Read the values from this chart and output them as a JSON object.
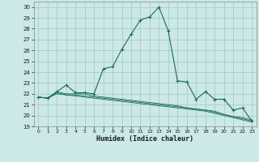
{
  "xlabel": "Humidex (Indice chaleur)",
  "bg_color": "#cce8e8",
  "grid_color": "#a0c8c8",
  "line_color": "#1a6b5a",
  "xlim": [
    -0.5,
    23.5
  ],
  "ylim": [
    19,
    30.5
  ],
  "yticks": [
    19,
    20,
    21,
    22,
    23,
    24,
    25,
    26,
    27,
    28,
    29,
    30
  ],
  "xticks": [
    0,
    1,
    2,
    3,
    4,
    5,
    6,
    7,
    8,
    9,
    10,
    11,
    12,
    13,
    14,
    15,
    16,
    17,
    18,
    19,
    20,
    21,
    22,
    23
  ],
  "series": [
    {
      "x": [
        0,
        1,
        2,
        3,
        4,
        5,
        6,
        7,
        8,
        9,
        10,
        11,
        12,
        13,
        14,
        15,
        16,
        17,
        18,
        19,
        20,
        21,
        22,
        23
      ],
      "y": [
        21.7,
        21.6,
        22.2,
        22.8,
        22.1,
        22.1,
        22.0,
        24.3,
        24.5,
        26.1,
        27.5,
        28.8,
        29.1,
        30.0,
        27.8,
        23.2,
        23.1,
        21.5,
        22.2,
        21.5,
        21.5,
        20.5,
        20.7,
        19.5
      ],
      "marker": true
    },
    {
      "x": [
        0,
        1,
        2,
        3,
        4,
        5,
        6,
        7,
        8,
        9,
        10,
        11,
        12,
        13,
        14,
        15,
        16,
        17,
        18,
        19,
        20,
        21,
        22,
        23
      ],
      "y": [
        21.7,
        21.6,
        22.2,
        22.0,
        22.0,
        22.0,
        21.8,
        21.7,
        21.6,
        21.5,
        21.4,
        21.3,
        21.2,
        21.1,
        21.0,
        20.9,
        20.7,
        20.6,
        20.5,
        20.4,
        20.1,
        19.9,
        19.8,
        19.6
      ],
      "marker": false
    },
    {
      "x": [
        0,
        1,
        2,
        3,
        4,
        5,
        6,
        7,
        8,
        9,
        10,
        11,
        12,
        13,
        14,
        15,
        16,
        17,
        18,
        19,
        20,
        21,
        22,
        23
      ],
      "y": [
        21.7,
        21.6,
        22.1,
        21.9,
        21.9,
        21.8,
        21.7,
        21.6,
        21.5,
        21.4,
        21.3,
        21.2,
        21.1,
        21.0,
        20.9,
        20.8,
        20.7,
        20.6,
        20.5,
        20.3,
        20.1,
        19.9,
        19.7,
        19.5
      ],
      "marker": false
    },
    {
      "x": [
        0,
        1,
        2,
        3,
        4,
        5,
        6,
        7,
        8,
        9,
        10,
        11,
        12,
        13,
        14,
        15,
        16,
        17,
        18,
        19,
        20,
        21,
        22,
        23
      ],
      "y": [
        21.7,
        21.6,
        22.0,
        21.9,
        21.8,
        21.7,
        21.6,
        21.5,
        21.4,
        21.3,
        21.2,
        21.1,
        21.0,
        20.9,
        20.8,
        20.7,
        20.6,
        20.5,
        20.4,
        20.2,
        20.0,
        19.8,
        19.6,
        19.4
      ],
      "marker": false
    }
  ]
}
